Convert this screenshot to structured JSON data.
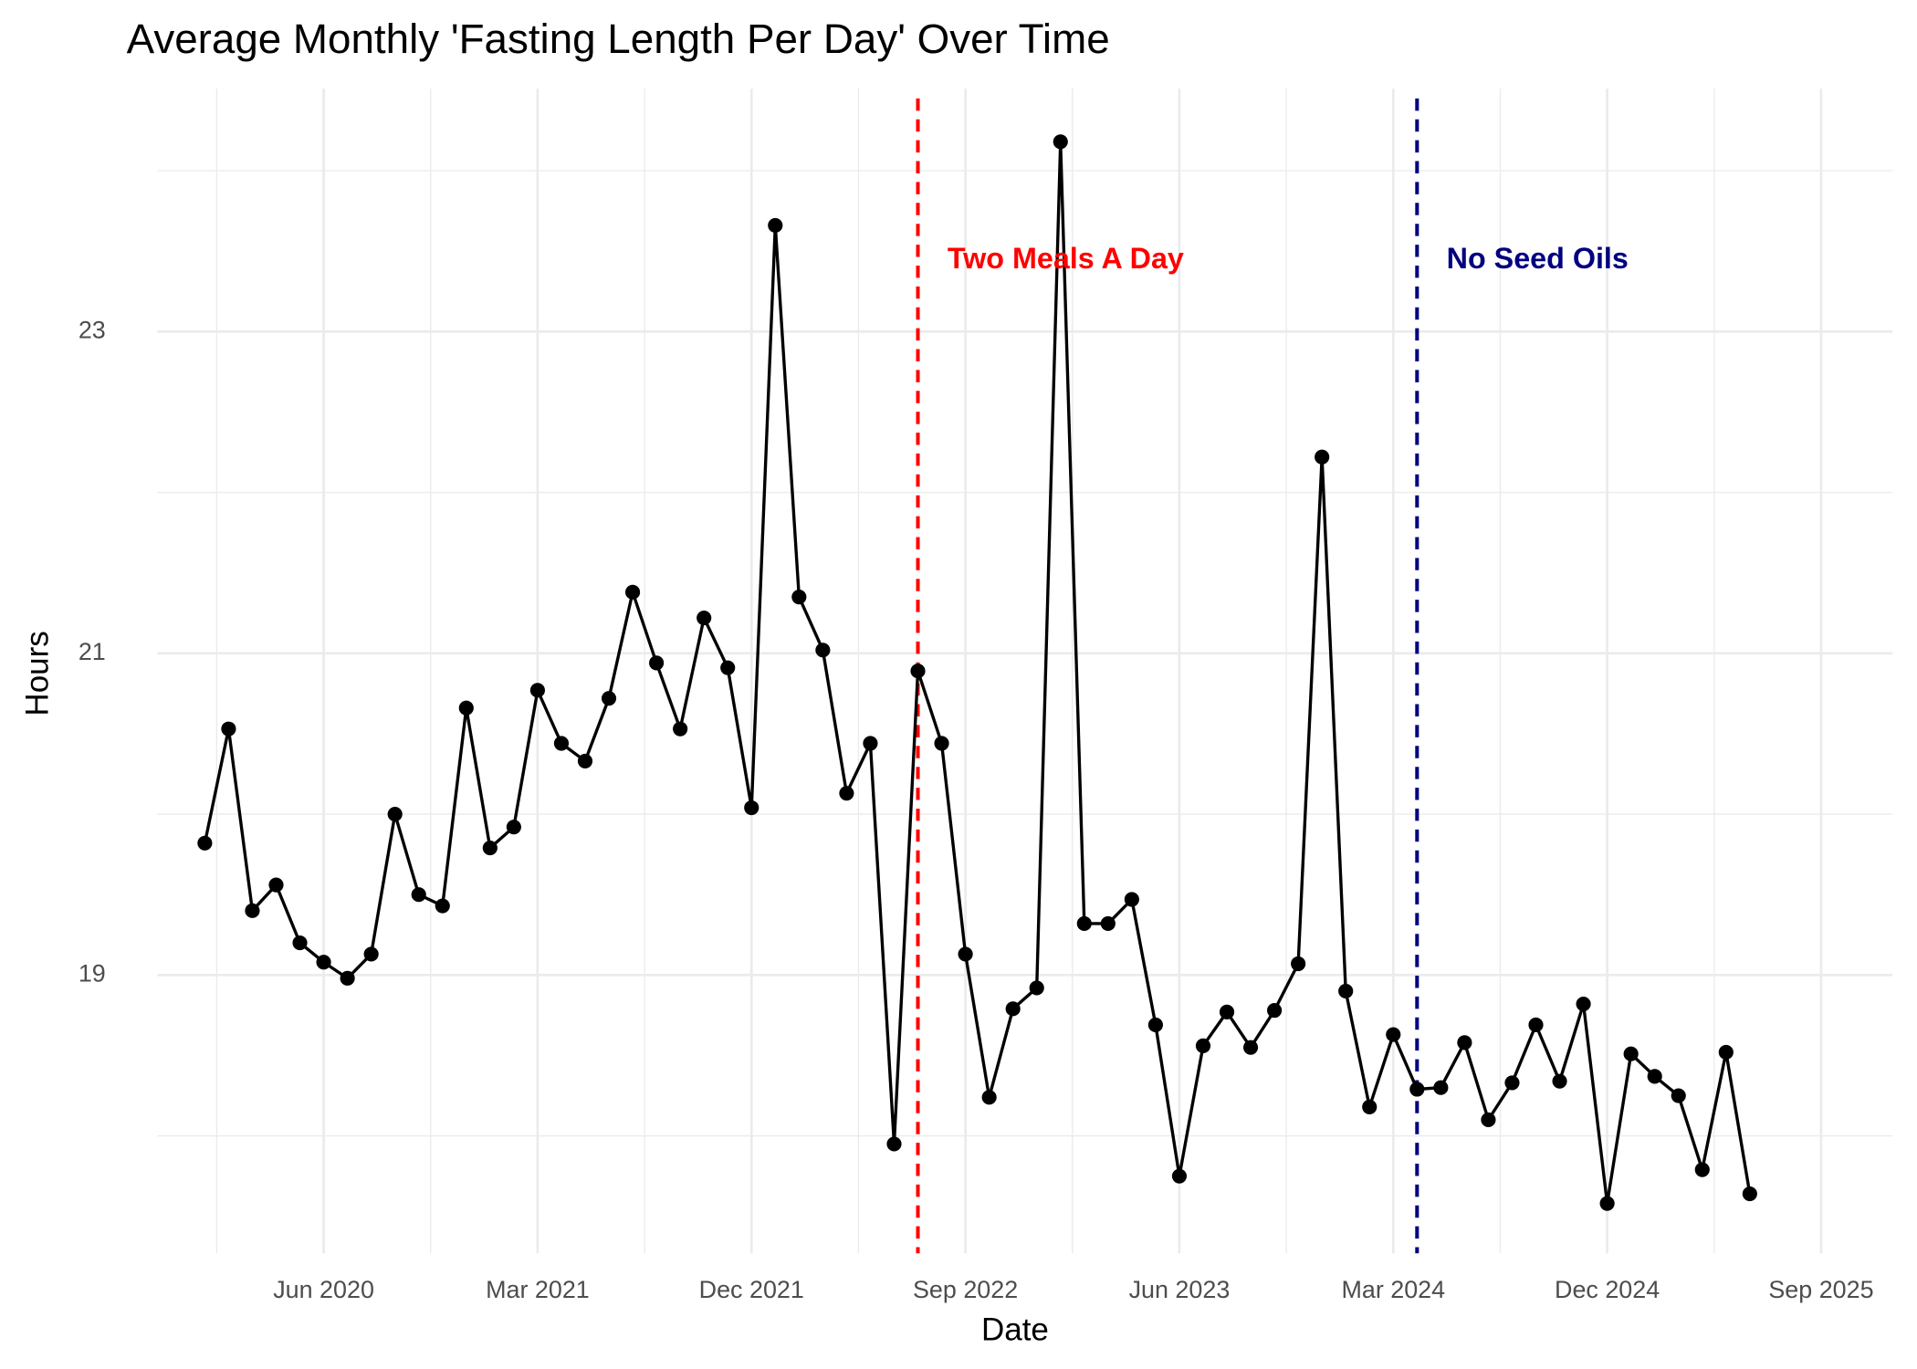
{
  "chart_data": {
    "type": "line",
    "title": "Average Monthly 'Fasting Length Per Day' Over Time",
    "x_label": "Date",
    "y_label": "Hours",
    "x": [
      "2020-01",
      "2020-02",
      "2020-03",
      "2020-04",
      "2020-05",
      "2020-06",
      "2020-07",
      "2020-08",
      "2020-09",
      "2020-10",
      "2020-11",
      "2020-12",
      "2021-01",
      "2021-02",
      "2021-03",
      "2021-04",
      "2021-05",
      "2021-06",
      "2021-07",
      "2021-08",
      "2021-09",
      "2021-10",
      "2021-11",
      "2021-12",
      "2022-01",
      "2022-02",
      "2022-03",
      "2022-04",
      "2022-05",
      "2022-06",
      "2022-07",
      "2022-08",
      "2022-09",
      "2022-10",
      "2022-11",
      "2022-12",
      "2023-01",
      "2023-02",
      "2023-03",
      "2023-04",
      "2023-05",
      "2023-06",
      "2023-07",
      "2023-08",
      "2023-09",
      "2023-10",
      "2023-11",
      "2023-12",
      "2024-01",
      "2024-02",
      "2024-03",
      "2024-04",
      "2024-05",
      "2024-06",
      "2024-07",
      "2024-08",
      "2024-09",
      "2024-10",
      "2024-11",
      "2024-12",
      "2025-01",
      "2025-02",
      "2025-03",
      "2025-04",
      "2025-05",
      "2025-06"
    ],
    "series": [
      {
        "name": "Fasting Length Per Day",
        "color": "#000000",
        "values": [
          19.82,
          20.53,
          19.4,
          19.56,
          19.2,
          19.08,
          18.98,
          19.13,
          20.0,
          19.5,
          19.43,
          20.66,
          19.79,
          19.92,
          20.77,
          20.44,
          20.33,
          20.72,
          21.38,
          20.94,
          20.53,
          21.22,
          20.91,
          20.04,
          23.66,
          21.35,
          21.02,
          20.13,
          20.44,
          17.95,
          20.89,
          20.44,
          19.13,
          18.24,
          18.79,
          18.92,
          24.18,
          19.32,
          19.32,
          19.47,
          18.69,
          17.75,
          18.56,
          18.77,
          18.55,
          18.78,
          19.07,
          22.22,
          18.9,
          18.18,
          18.63,
          18.29,
          18.3,
          18.58,
          18.1,
          18.33,
          18.69,
          18.34,
          18.82,
          17.58,
          18.51,
          18.37,
          18.25,
          17.79,
          18.52,
          17.64
        ]
      }
    ],
    "xlim": [
      "2019-11",
      "2025-12"
    ],
    "xticks": [
      {
        "value": "2020-06",
        "label": "Jun 2020"
      },
      {
        "value": "2021-03",
        "label": "Mar 2021"
      },
      {
        "value": "2021-12",
        "label": "Dec 2021"
      },
      {
        "value": "2022-09",
        "label": "Sep 2022"
      },
      {
        "value": "2023-06",
        "label": "Jun 2023"
      },
      {
        "value": "2024-03",
        "label": "Mar 2024"
      },
      {
        "value": "2024-12",
        "label": "Dec 2024"
      },
      {
        "value": "2025-09",
        "label": "Sep 2025"
      }
    ],
    "ylim": [
      17.27,
      24.51
    ],
    "yticks": [
      19,
      21,
      23
    ],
    "grid": true,
    "annotations": [
      {
        "x": "2022-07",
        "y": 23.44,
        "label": "Two Meals A Day",
        "color": "#ff0000"
      },
      {
        "x": "2024-04",
        "y": 23.44,
        "label": "No Seed Oils",
        "color": "#000080"
      }
    ]
  }
}
